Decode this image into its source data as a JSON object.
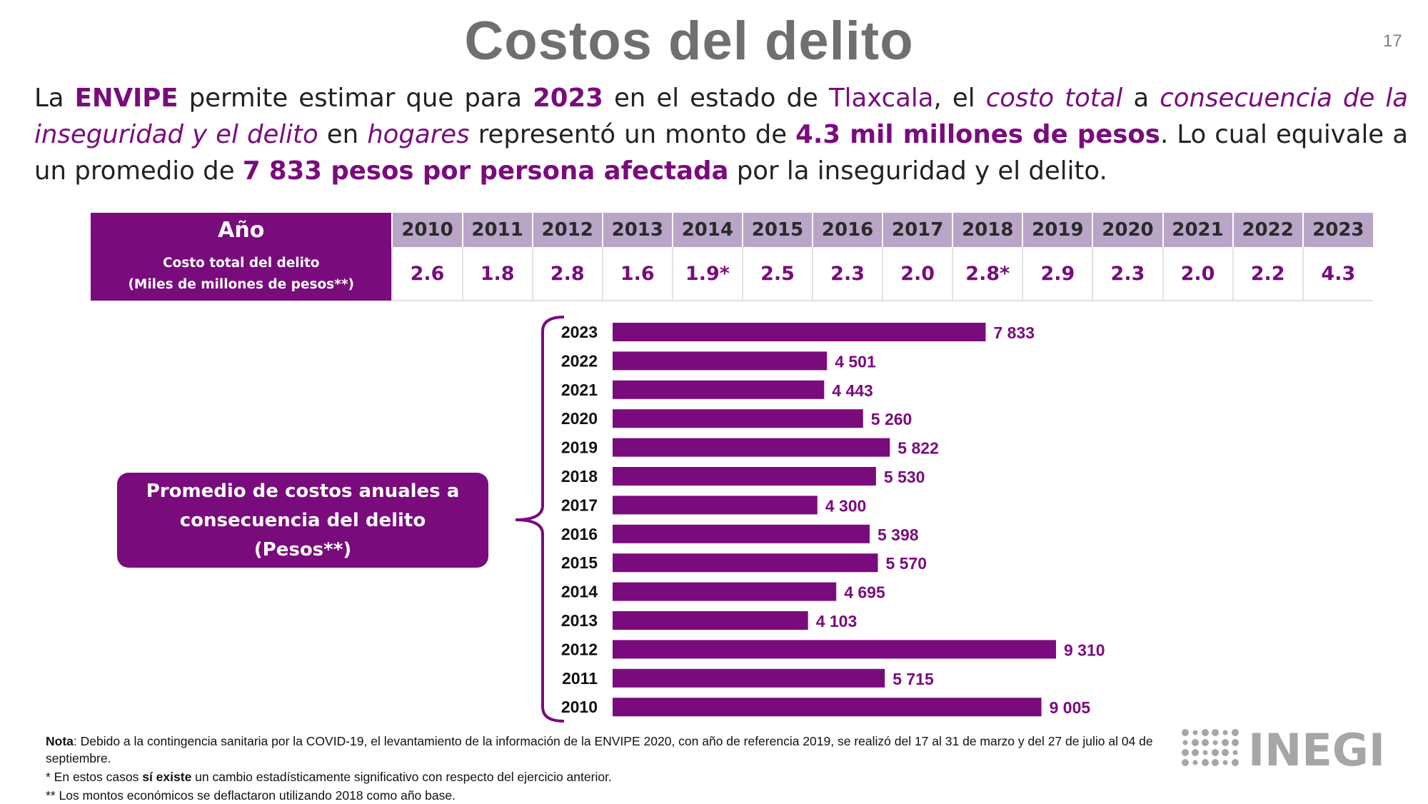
{
  "slide": {
    "title": "Costos del delito",
    "page_number": "17"
  },
  "intro": {
    "s1": "La ",
    "s2": "ENVIPE",
    "s3": " permite estimar que para ",
    "s4": "2023",
    "s5": " en el estado de ",
    "s6": "Tlaxcala",
    "s7": ", el ",
    "s8": "costo total",
    "s9": " a ",
    "s10": "consecuencia de la inseguridad y el delito",
    "s11": " en ",
    "s12": "hogares",
    "s13": " representó un monto de ",
    "s14": "4.3 mil millones de pesos",
    "s15": ". Lo cual equivale a un promedio de ",
    "s16": "7 833 pesos por persona afectada",
    "s17": " por la inseguridad y el delito."
  },
  "cost_table": {
    "header_label": "Año",
    "row_label_line1": "Costo total del delito",
    "row_label_line2": "(Miles de millones de pesos**)",
    "years": [
      "2010",
      "2011",
      "2012",
      "2013",
      "2014",
      "2015",
      "2016",
      "2017",
      "2018",
      "2019",
      "2020",
      "2021",
      "2022",
      "2023"
    ],
    "values": [
      "2.6",
      "1.8",
      "2.8",
      "1.6",
      "1.9*",
      "2.5",
      "2.3",
      "2.0",
      "2.8*",
      "2.9",
      "2.3",
      "2.0",
      "2.2",
      "4.3"
    ]
  },
  "callout": {
    "line1": "Promedio de costos anuales a",
    "line2": "consecuencia del delito",
    "line3": "(Pesos**)"
  },
  "chart_data": {
    "type": "bar",
    "orientation": "horizontal",
    "title": "Promedio de costos anuales a consecuencia del delito (Pesos**)",
    "categories": [
      "2023",
      "2022",
      "2021",
      "2020",
      "2019",
      "2018",
      "2017",
      "2016",
      "2015",
      "2014",
      "2013",
      "2012",
      "2011",
      "2010"
    ],
    "values": [
      7833,
      4501,
      4443,
      5260,
      5822,
      5530,
      4300,
      5398,
      5570,
      4695,
      4103,
      9310,
      5715,
      9005
    ],
    "labels": [
      "7 833",
      "4 501",
      "4 443",
      "5 260",
      "5 822",
      "5 530",
      "4 300",
      "5 398",
      "5 570",
      "4 695",
      "4 103",
      "9 310",
      "5 715",
      "9 005"
    ],
    "xlim": [
      0,
      10000
    ],
    "grid": false,
    "bar_color": "#7a0b7d"
  },
  "notes": {
    "nota_label": "Nota",
    "nota_text": ": Debido a la contingencia sanitaria por la COVID-19, el levantamiento de la información de la ENVIPE 2020, con año de referencia 2019, se realizó del 17 al 31 de marzo y del 27 de julio al 04 de septiembre.",
    "star_pre": "* En estos casos ",
    "star_bold": "sí existe",
    "star_post": " un cambio estadísticamente significativo con respecto del ejercicio anterior.",
    "double_star": "** Los montos económicos se deflactaron utilizando 2018 como año base."
  },
  "logo": {
    "text": "INEGI"
  },
  "colors": {
    "accent": "#7a0b7d",
    "table_header": "#b8a5c7",
    "title_gray": "#6f6f6f",
    "logo_gray": "#a6a6a6"
  }
}
